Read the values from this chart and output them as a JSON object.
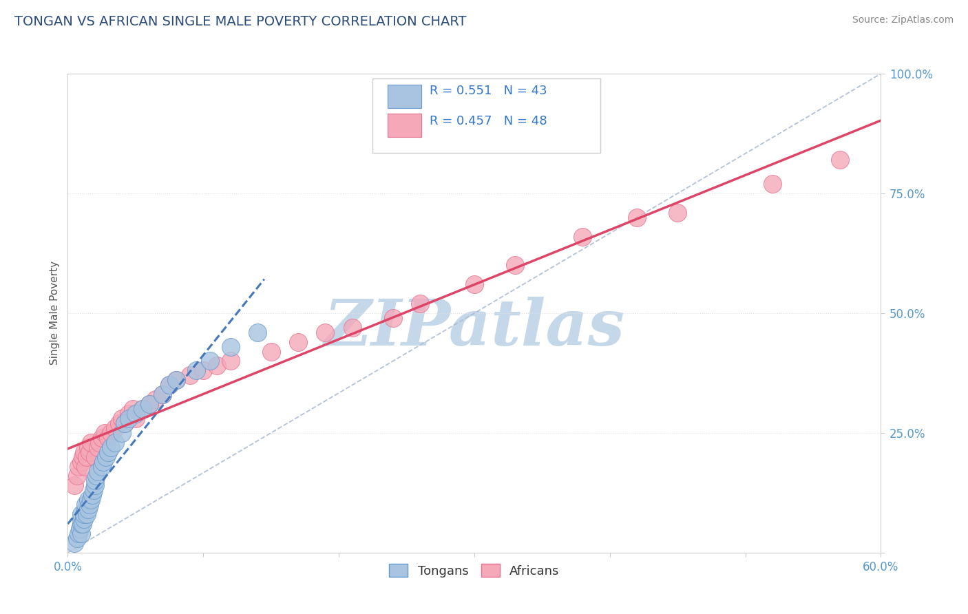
{
  "title": "TONGAN VS AFRICAN SINGLE MALE POVERTY CORRELATION CHART",
  "source_text": "Source: ZipAtlas.com",
  "ylabel": "Single Male Poverty",
  "xlim": [
    0.0,
    0.6
  ],
  "ylim": [
    0.0,
    1.0
  ],
  "xtick_labels": [
    "0.0%",
    "",
    "",
    "",
    "",
    "",
    "60.0%"
  ],
  "xtick_vals": [
    0.0,
    0.1,
    0.2,
    0.3,
    0.4,
    0.5,
    0.6
  ],
  "ytick_labels": [
    "",
    "25.0%",
    "50.0%",
    "75.0%",
    "100.0%"
  ],
  "ytick_vals": [
    0.0,
    0.25,
    0.5,
    0.75,
    1.0
  ],
  "tongan_R": 0.551,
  "tongan_N": 43,
  "african_R": 0.457,
  "african_N": 48,
  "tongan_color": "#a8c4e0",
  "african_color": "#f4a8b8",
  "tongan_edge": "#6699cc",
  "african_edge": "#e87090",
  "watermark": "ZIPatlas",
  "watermark_color": "#c5d8ea",
  "title_color": "#2a4a7a",
  "source_color": "#888888",
  "tick_label_color": "#5599cc",
  "legend_R_color": "#3377cc",
  "grid_color": "#e0e0e0",
  "bg_color": "#ffffff",
  "tongan_x": [
    0.005,
    0.007,
    0.008,
    0.009,
    0.01,
    0.01,
    0.01,
    0.01,
    0.011,
    0.012,
    0.012,
    0.013,
    0.013,
    0.014,
    0.015,
    0.015,
    0.016,
    0.017,
    0.018,
    0.019,
    0.02,
    0.02,
    0.021,
    0.022,
    0.025,
    0.026,
    0.028,
    0.03,
    0.032,
    0.035,
    0.04,
    0.042,
    0.045,
    0.05,
    0.055,
    0.06,
    0.07,
    0.075,
    0.08,
    0.095,
    0.105,
    0.12,
    0.14
  ],
  "tongan_y": [
    0.02,
    0.03,
    0.04,
    0.05,
    0.04,
    0.06,
    0.07,
    0.08,
    0.06,
    0.07,
    0.08,
    0.09,
    0.1,
    0.08,
    0.09,
    0.11,
    0.1,
    0.11,
    0.12,
    0.13,
    0.14,
    0.15,
    0.16,
    0.17,
    0.18,
    0.19,
    0.2,
    0.21,
    0.22,
    0.23,
    0.25,
    0.27,
    0.28,
    0.29,
    0.3,
    0.31,
    0.33,
    0.35,
    0.36,
    0.38,
    0.4,
    0.43,
    0.46
  ],
  "african_x": [
    0.005,
    0.007,
    0.008,
    0.01,
    0.011,
    0.012,
    0.013,
    0.014,
    0.015,
    0.016,
    0.017,
    0.02,
    0.022,
    0.023,
    0.025,
    0.027,
    0.03,
    0.032,
    0.035,
    0.038,
    0.04,
    0.042,
    0.045,
    0.048,
    0.05,
    0.055,
    0.06,
    0.065,
    0.07,
    0.075,
    0.08,
    0.09,
    0.1,
    0.11,
    0.12,
    0.15,
    0.17,
    0.19,
    0.21,
    0.24,
    0.26,
    0.3,
    0.33,
    0.38,
    0.42,
    0.45,
    0.52,
    0.57
  ],
  "african_y": [
    0.14,
    0.16,
    0.18,
    0.19,
    0.2,
    0.21,
    0.18,
    0.2,
    0.22,
    0.21,
    0.23,
    0.2,
    0.22,
    0.23,
    0.24,
    0.25,
    0.24,
    0.25,
    0.26,
    0.27,
    0.28,
    0.27,
    0.29,
    0.3,
    0.28,
    0.3,
    0.31,
    0.32,
    0.33,
    0.35,
    0.36,
    0.37,
    0.38,
    0.39,
    0.4,
    0.42,
    0.44,
    0.46,
    0.47,
    0.49,
    0.52,
    0.56,
    0.6,
    0.66,
    0.7,
    0.71,
    0.77,
    0.82
  ],
  "diag_line_color": "#aabbd4",
  "tongan_line_color": "#4477bb",
  "african_line_color": "#dd4466"
}
